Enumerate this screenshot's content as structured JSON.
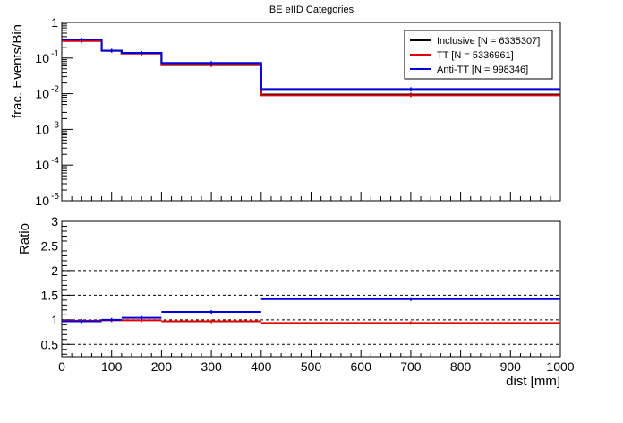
{
  "chart_data": [
    {
      "type": "histogram",
      "title": "BE eIID Categories",
      "ylabel": "frac. Events/Bin",
      "xlabel": "",
      "yscale": "log",
      "xlim": [
        0,
        1000
      ],
      "ylim": [
        1e-05,
        1
      ],
      "y_ticks": [
        {
          "base": "10",
          "exp": "-5",
          "value": 1e-05
        },
        {
          "base": "10",
          "exp": "-4",
          "value": 0.0001
        },
        {
          "base": "10",
          "exp": "-3",
          "value": 0.001
        },
        {
          "base": "10",
          "exp": "-2",
          "value": 0.01
        },
        {
          "base": "10",
          "exp": "-1",
          "value": 0.1
        },
        {
          "base": "1",
          "exp": "",
          "value": 1
        }
      ],
      "bin_edges": [
        0,
        80,
        120,
        200,
        400,
        1000
      ],
      "legend_position": "top-right",
      "series": [
        {
          "name": "Inclusive [N = 6335307]",
          "color": "#000000",
          "values": [
            0.31,
            0.16,
            0.135,
            0.065,
            0.0095
          ]
        },
        {
          "name": "TT [N = 5336961]",
          "color": "#e00000",
          "values": [
            0.3,
            0.16,
            0.135,
            0.063,
            0.009
          ]
        },
        {
          "name": "Anti-TT [N = 998346]",
          "color": "#0000dd",
          "values": [
            0.33,
            0.162,
            0.14,
            0.073,
            0.0135
          ]
        }
      ]
    },
    {
      "type": "histogram",
      "title": "",
      "ylabel": "Ratio",
      "xlabel": "dist [mm]",
      "xlim": [
        0,
        1000
      ],
      "ylim": [
        0.25,
        3
      ],
      "x_ticks": [
        "0",
        "100",
        "200",
        "300",
        "400",
        "500",
        "600",
        "700",
        "800",
        "900",
        "1000"
      ],
      "y_ticks": [
        "0.5",
        "1",
        "1.5",
        "2",
        "2.5",
        "3"
      ],
      "grid_lines": [
        0.5,
        1,
        1.5,
        2,
        2.5
      ],
      "bin_edges": [
        0,
        80,
        120,
        200,
        400,
        1000
      ],
      "series": [
        {
          "name": "TT",
          "color": "#e00000",
          "values": [
            0.98,
            0.99,
            0.99,
            0.97,
            0.935
          ]
        },
        {
          "name": "Anti-TT",
          "color": "#0000dd",
          "values": [
            0.97,
            1.0,
            1.04,
            1.16,
            1.42
          ]
        }
      ]
    }
  ]
}
